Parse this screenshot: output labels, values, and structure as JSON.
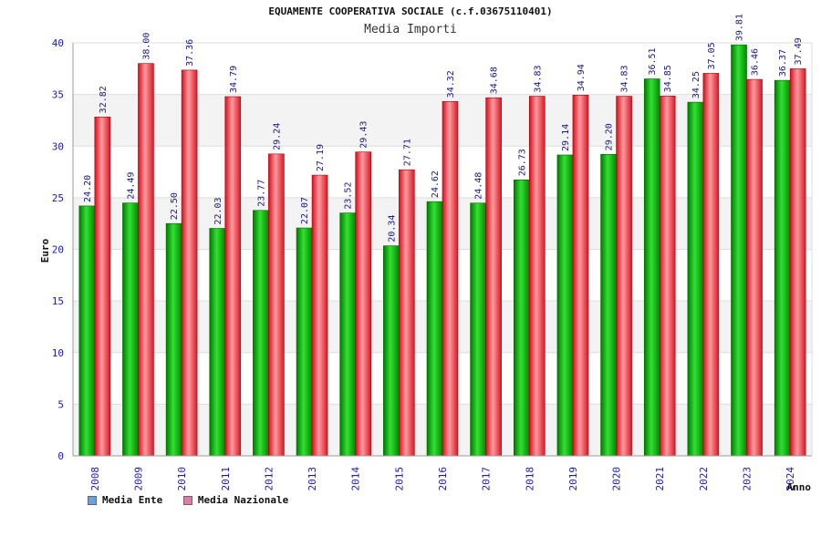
{
  "chart_data": {
    "type": "bar",
    "title": "EQUAMENTE COOPERATIVA SOCIALE (c.f.03675110401)",
    "subtitle": "Media Importi",
    "xlabel": "Anno",
    "ylabel": "Euro",
    "ylim": [
      0,
      40
    ],
    "yticks": [
      0,
      5,
      10,
      15,
      20,
      25,
      30,
      35,
      40
    ],
    "grid": true,
    "legend_position": "bottom-left",
    "categories": [
      "2008",
      "2009",
      "2010",
      "2011",
      "2012",
      "2013",
      "2014",
      "2015",
      "2016",
      "2017",
      "2018",
      "2019",
      "2020",
      "2021",
      "2022",
      "2023",
      "2024"
    ],
    "series": [
      {
        "name": "Media Ente",
        "color": "#00a000",
        "legend_color": "#66a3e0",
        "values": [
          24.2,
          24.49,
          22.5,
          22.03,
          23.77,
          22.07,
          23.52,
          20.34,
          24.62,
          24.48,
          26.73,
          29.14,
          29.2,
          36.51,
          34.25,
          39.81,
          36.37
        ],
        "labels": [
          "24.20",
          "24.49",
          "22.50",
          "22.03",
          "23.77",
          "22.07",
          "23.52",
          "20.34",
          "24.62",
          "24.48",
          "26.73",
          "29.14",
          "29.20",
          "36.51",
          "34.25",
          "39.81",
          "36.37"
        ]
      },
      {
        "name": "Media Nazionale",
        "color": "#e8202a",
        "legend_color": "#e07aa8",
        "values": [
          32.82,
          38.0,
          37.36,
          34.79,
          29.24,
          27.19,
          29.43,
          27.71,
          34.32,
          34.68,
          34.83,
          34.94,
          34.83,
          34.85,
          37.05,
          36.46,
          37.49
        ],
        "labels": [
          "32.82",
          "38.00",
          "37.36",
          "34.79",
          "29.24",
          "27.19",
          "29.43",
          "27.71",
          "34.32",
          "34.68",
          "34.83",
          "34.94",
          "34.83",
          "34.85",
          "37.05",
          "36.46",
          "37.49"
        ]
      }
    ]
  }
}
